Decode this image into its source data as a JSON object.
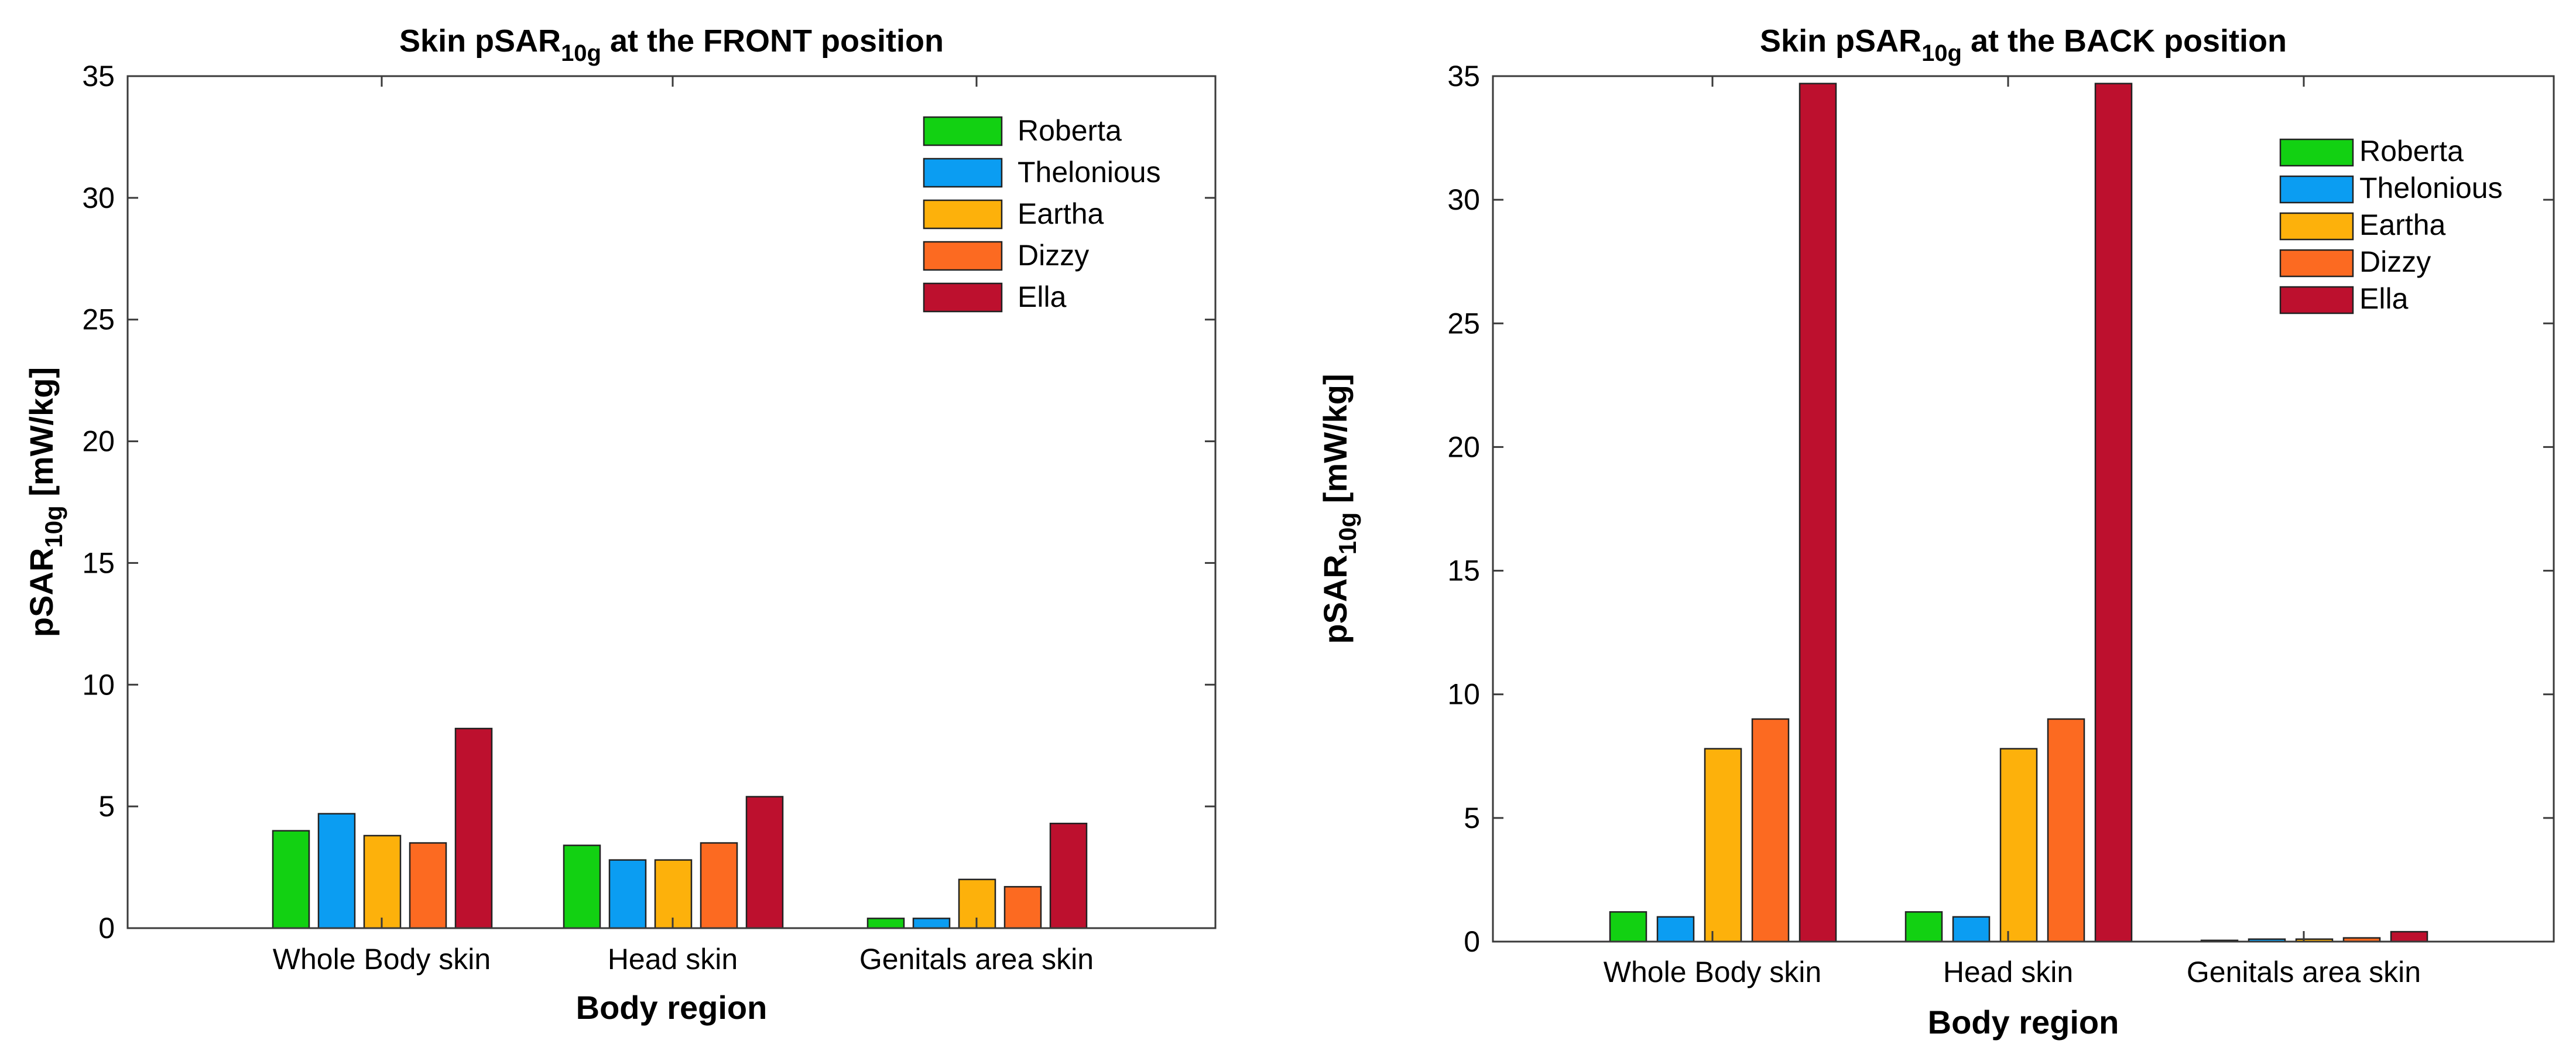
{
  "chart_data": [
    {
      "type": "bar",
      "title": {
        "main": "Skin pSAR",
        "sub": "10g",
        "rest": " at the FRONT position"
      },
      "xlabel": "Body region",
      "ylabel": {
        "main": "pSAR",
        "sub": "10g",
        "rest": " [mW/kg]"
      },
      "ylim": [
        0,
        35
      ],
      "yticks": [
        "0",
        "5",
        "10",
        "15",
        "20",
        "25",
        "30",
        "35"
      ],
      "categories": [
        "Whole Body skin",
        "Head skin",
        "Genitals area skin"
      ],
      "series": [
        {
          "name": "Roberta",
          "color": "#12D112",
          "values": [
            4.0,
            3.4,
            0.4
          ]
        },
        {
          "name": "Thelonious",
          "color": "#0B9DF2",
          "values": [
            4.7,
            2.8,
            0.4
          ]
        },
        {
          "name": "Eartha",
          "color": "#FDB10B",
          "values": [
            3.8,
            2.8,
            2.0
          ]
        },
        {
          "name": "Dizzy",
          "color": "#FC6A21",
          "values": [
            3.5,
            3.5,
            1.7
          ]
        },
        {
          "name": "Ella",
          "color": "#BD102E",
          "values": [
            8.2,
            5.4,
            4.3
          ]
        }
      ],
      "legend_position": "top-right",
      "grid": false
    },
    {
      "type": "bar",
      "title": {
        "main": "Skin pSAR",
        "sub": "10g",
        "rest": " at the BACK position"
      },
      "xlabel": "Body region",
      "ylabel": {
        "main": "pSAR",
        "sub": "10g",
        "rest": " [mW/kg]"
      },
      "ylim": [
        0,
        35
      ],
      "yticks": [
        "0",
        "5",
        "10",
        "15",
        "20",
        "25",
        "30",
        "35"
      ],
      "categories": [
        "Whole Body skin",
        "Head skin",
        "Genitals area skin"
      ],
      "series": [
        {
          "name": "Roberta",
          "color": "#12D112",
          "values": [
            1.2,
            1.2,
            0.05
          ]
        },
        {
          "name": "Thelonious",
          "color": "#0B9DF2",
          "values": [
            1.0,
            1.0,
            0.1
          ]
        },
        {
          "name": "Eartha",
          "color": "#FDB10B",
          "values": [
            7.8,
            7.8,
            0.1
          ]
        },
        {
          "name": "Dizzy",
          "color": "#FC6A21",
          "values": [
            9.0,
            9.0,
            0.15
          ]
        },
        {
          "name": "Ella",
          "color": "#BD102E",
          "values": [
            34.7,
            34.7,
            0.4
          ]
        }
      ],
      "legend_position": "top-right",
      "grid": false
    }
  ]
}
